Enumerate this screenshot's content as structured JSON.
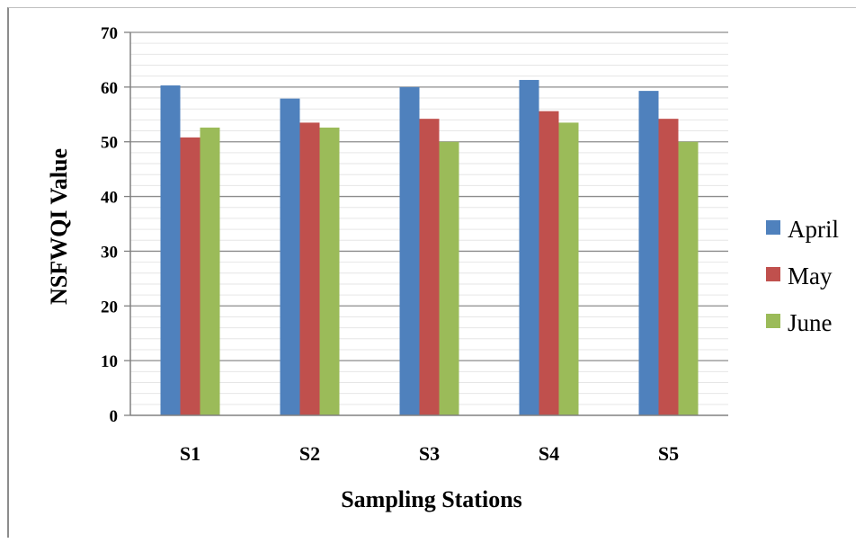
{
  "chart_data": {
    "type": "bar",
    "title": "",
    "xlabel": "Sampling Stations",
    "ylabel": "NSFWQI Value",
    "categories": [
      "S1",
      "S2",
      "S3",
      "S4",
      "S5"
    ],
    "series": [
      {
        "name": "April",
        "color": "#4F81BD",
        "values": [
          60.3,
          57.9,
          60.0,
          61.3,
          59.3
        ]
      },
      {
        "name": "May",
        "color": "#C0504D",
        "values": [
          50.8,
          53.5,
          54.2,
          55.6,
          54.2
        ]
      },
      {
        "name": "June",
        "color": "#9BBB59",
        "values": [
          52.6,
          52.6,
          50.0,
          53.5,
          50.0
        ]
      }
    ],
    "ylim": [
      0,
      70
    ],
    "yticks": [
      0,
      10,
      20,
      30,
      40,
      50,
      60,
      70
    ],
    "grid": true,
    "legend": "right"
  }
}
